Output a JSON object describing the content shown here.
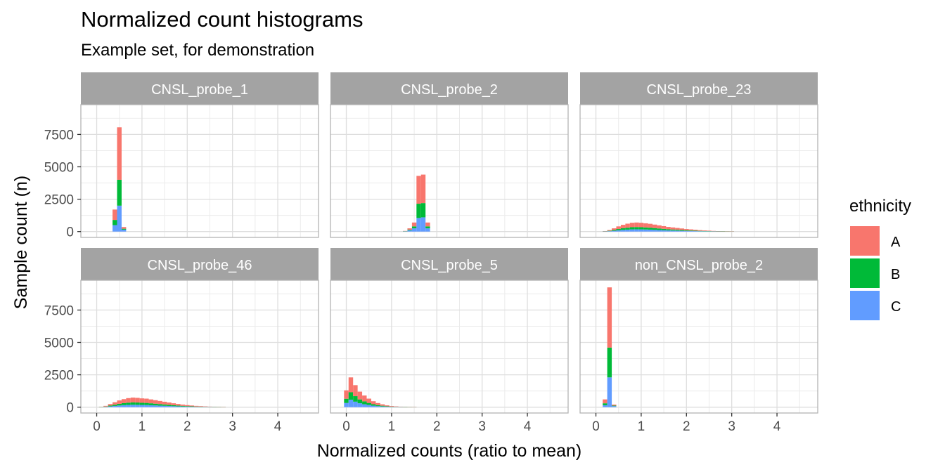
{
  "chart_data": {
    "type": "bar",
    "stacked": true,
    "title": "Normalized count histograms",
    "subtitle": "Example set, for demonstration",
    "xlabel": "Normalized counts (ratio to mean)",
    "ylabel": "Sample count (n)",
    "xlim": [
      -0.35,
      4.9
    ],
    "ylim": [
      -450,
      9800
    ],
    "x_ticks": [
      "0",
      "1",
      "2",
      "3",
      "4"
    ],
    "y_ticks": [
      "0",
      "2500",
      "5000",
      "7500"
    ],
    "grid": true,
    "bin_width": 0.1,
    "legend": {
      "title": "ethnicity",
      "position": "right",
      "entries": [
        {
          "label": "A",
          "color": "#F8766D"
        },
        {
          "label": "B",
          "color": "#00BA38"
        },
        {
          "label": "C",
          "color": "#619CFF"
        }
      ]
    },
    "stack_order": [
      "C",
      "B",
      "A"
    ],
    "panels": [
      {
        "name": "CNSL_probe_1",
        "bins": [
          {
            "x": 0.4,
            "A": 800,
            "B": 400,
            "C": 500
          },
          {
            "x": 0.5,
            "A": 4050,
            "B": 2000,
            "C": 2000
          },
          {
            "x": 0.6,
            "A": 130,
            "B": 70,
            "C": 150
          }
        ]
      },
      {
        "name": "CNSL_probe_2",
        "bins": [
          {
            "x": 1.3,
            "A": 20,
            "B": 10,
            "C": 20
          },
          {
            "x": 1.4,
            "A": 100,
            "B": 50,
            "C": 100
          },
          {
            "x": 1.5,
            "A": 300,
            "B": 150,
            "C": 250
          },
          {
            "x": 1.6,
            "A": 2150,
            "B": 1100,
            "C": 1050
          },
          {
            "x": 1.7,
            "A": 2200,
            "B": 1100,
            "C": 1100
          },
          {
            "x": 1.8,
            "A": 300,
            "B": 150,
            "C": 250
          }
        ]
      },
      {
        "name": "CNSL_probe_23",
        "bins": [
          {
            "x": 0.2,
            "A": 20,
            "B": 10,
            "C": 10
          },
          {
            "x": 0.3,
            "A": 60,
            "B": 30,
            "C": 30
          },
          {
            "x": 0.4,
            "A": 130,
            "B": 60,
            "C": 60
          },
          {
            "x": 0.5,
            "A": 200,
            "B": 100,
            "C": 100
          },
          {
            "x": 0.6,
            "A": 260,
            "B": 130,
            "C": 130
          },
          {
            "x": 0.7,
            "A": 310,
            "B": 150,
            "C": 150
          },
          {
            "x": 0.8,
            "A": 340,
            "B": 170,
            "C": 170
          },
          {
            "x": 0.9,
            "A": 350,
            "B": 175,
            "C": 175
          },
          {
            "x": 1.0,
            "A": 340,
            "B": 170,
            "C": 170
          },
          {
            "x": 1.1,
            "A": 320,
            "B": 160,
            "C": 160
          },
          {
            "x": 1.2,
            "A": 300,
            "B": 150,
            "C": 150
          },
          {
            "x": 1.3,
            "A": 270,
            "B": 135,
            "C": 135
          },
          {
            "x": 1.4,
            "A": 240,
            "B": 120,
            "C": 120
          },
          {
            "x": 1.5,
            "A": 210,
            "B": 105,
            "C": 105
          },
          {
            "x": 1.6,
            "A": 180,
            "B": 90,
            "C": 90
          },
          {
            "x": 1.7,
            "A": 160,
            "B": 80,
            "C": 80
          },
          {
            "x": 1.8,
            "A": 140,
            "B": 70,
            "C": 70
          },
          {
            "x": 1.9,
            "A": 120,
            "B": 60,
            "C": 60
          },
          {
            "x": 2.0,
            "A": 100,
            "B": 50,
            "C": 50
          },
          {
            "x": 2.1,
            "A": 85,
            "B": 42,
            "C": 43
          },
          {
            "x": 2.2,
            "A": 70,
            "B": 35,
            "C": 35
          },
          {
            "x": 2.3,
            "A": 55,
            "B": 28,
            "C": 27
          },
          {
            "x": 2.4,
            "A": 45,
            "B": 22,
            "C": 23
          },
          {
            "x": 2.5,
            "A": 35,
            "B": 18,
            "C": 17
          },
          {
            "x": 2.6,
            "A": 25,
            "B": 12,
            "C": 13
          },
          {
            "x": 2.7,
            "A": 18,
            "B": 9,
            "C": 9
          },
          {
            "x": 2.8,
            "A": 12,
            "B": 6,
            "C": 6
          },
          {
            "x": 2.9,
            "A": 8,
            "B": 4,
            "C": 4
          },
          {
            "x": 3.0,
            "A": 5,
            "B": 3,
            "C": 2
          }
        ]
      },
      {
        "name": "CNSL_probe_46",
        "bins": [
          {
            "x": 0.1,
            "A": 10,
            "B": 5,
            "C": 5
          },
          {
            "x": 0.2,
            "A": 50,
            "B": 25,
            "C": 25
          },
          {
            "x": 0.3,
            "A": 120,
            "B": 60,
            "C": 60
          },
          {
            "x": 0.4,
            "A": 190,
            "B": 95,
            "C": 95
          },
          {
            "x": 0.5,
            "A": 260,
            "B": 130,
            "C": 130
          },
          {
            "x": 0.6,
            "A": 310,
            "B": 155,
            "C": 155
          },
          {
            "x": 0.7,
            "A": 350,
            "B": 175,
            "C": 175
          },
          {
            "x": 0.8,
            "A": 370,
            "B": 185,
            "C": 185
          },
          {
            "x": 0.9,
            "A": 360,
            "B": 180,
            "C": 180
          },
          {
            "x": 1.0,
            "A": 340,
            "B": 170,
            "C": 170
          },
          {
            "x": 1.1,
            "A": 330,
            "B": 165,
            "C": 165
          },
          {
            "x": 1.2,
            "A": 300,
            "B": 150,
            "C": 150
          },
          {
            "x": 1.3,
            "A": 270,
            "B": 135,
            "C": 135
          },
          {
            "x": 1.4,
            "A": 240,
            "B": 120,
            "C": 120
          },
          {
            "x": 1.5,
            "A": 210,
            "B": 105,
            "C": 105
          },
          {
            "x": 1.6,
            "A": 180,
            "B": 90,
            "C": 90
          },
          {
            "x": 1.7,
            "A": 150,
            "B": 75,
            "C": 75
          },
          {
            "x": 1.8,
            "A": 125,
            "B": 62,
            "C": 63
          },
          {
            "x": 1.9,
            "A": 100,
            "B": 50,
            "C": 50
          },
          {
            "x": 2.0,
            "A": 80,
            "B": 40,
            "C": 40
          },
          {
            "x": 2.1,
            "A": 65,
            "B": 32,
            "C": 33
          },
          {
            "x": 2.2,
            "A": 50,
            "B": 25,
            "C": 25
          },
          {
            "x": 2.3,
            "A": 40,
            "B": 20,
            "C": 20
          },
          {
            "x": 2.4,
            "A": 30,
            "B": 15,
            "C": 15
          },
          {
            "x": 2.5,
            "A": 22,
            "B": 11,
            "C": 11
          },
          {
            "x": 2.6,
            "A": 15,
            "B": 8,
            "C": 7
          },
          {
            "x": 2.7,
            "A": 10,
            "B": 5,
            "C": 5
          },
          {
            "x": 2.8,
            "A": 6,
            "B": 3,
            "C": 3
          }
        ]
      },
      {
        "name": "CNSL_probe_5",
        "bins": [
          {
            "x": 0.0,
            "A": 650,
            "B": 325,
            "C": 325
          },
          {
            "x": 0.1,
            "A": 1150,
            "B": 575,
            "C": 575
          },
          {
            "x": 0.2,
            "A": 850,
            "B": 425,
            "C": 425
          },
          {
            "x": 0.3,
            "A": 600,
            "B": 300,
            "C": 300
          },
          {
            "x": 0.4,
            "A": 450,
            "B": 225,
            "C": 225
          },
          {
            "x": 0.5,
            "A": 330,
            "B": 165,
            "C": 165
          },
          {
            "x": 0.6,
            "A": 230,
            "B": 115,
            "C": 115
          },
          {
            "x": 0.7,
            "A": 160,
            "B": 80,
            "C": 80
          },
          {
            "x": 0.8,
            "A": 110,
            "B": 55,
            "C": 55
          },
          {
            "x": 0.9,
            "A": 70,
            "B": 35,
            "C": 35
          },
          {
            "x": 1.0,
            "A": 45,
            "B": 23,
            "C": 22
          },
          {
            "x": 1.1,
            "A": 30,
            "B": 15,
            "C": 15
          },
          {
            "x": 1.2,
            "A": 20,
            "B": 10,
            "C": 10
          },
          {
            "x": 1.3,
            "A": 12,
            "B": 6,
            "C": 6
          },
          {
            "x": 1.4,
            "A": 8,
            "B": 4,
            "C": 4
          },
          {
            "x": 1.5,
            "A": 5,
            "B": 3,
            "C": 2
          }
        ]
      },
      {
        "name": "non_CNSL_probe_2",
        "bins": [
          {
            "x": 0.2,
            "A": 300,
            "B": 150,
            "C": 150
          },
          {
            "x": 0.3,
            "A": 4650,
            "B": 2300,
            "C": 2300
          },
          {
            "x": 0.4,
            "A": 80,
            "B": 40,
            "C": 80
          }
        ]
      }
    ]
  }
}
